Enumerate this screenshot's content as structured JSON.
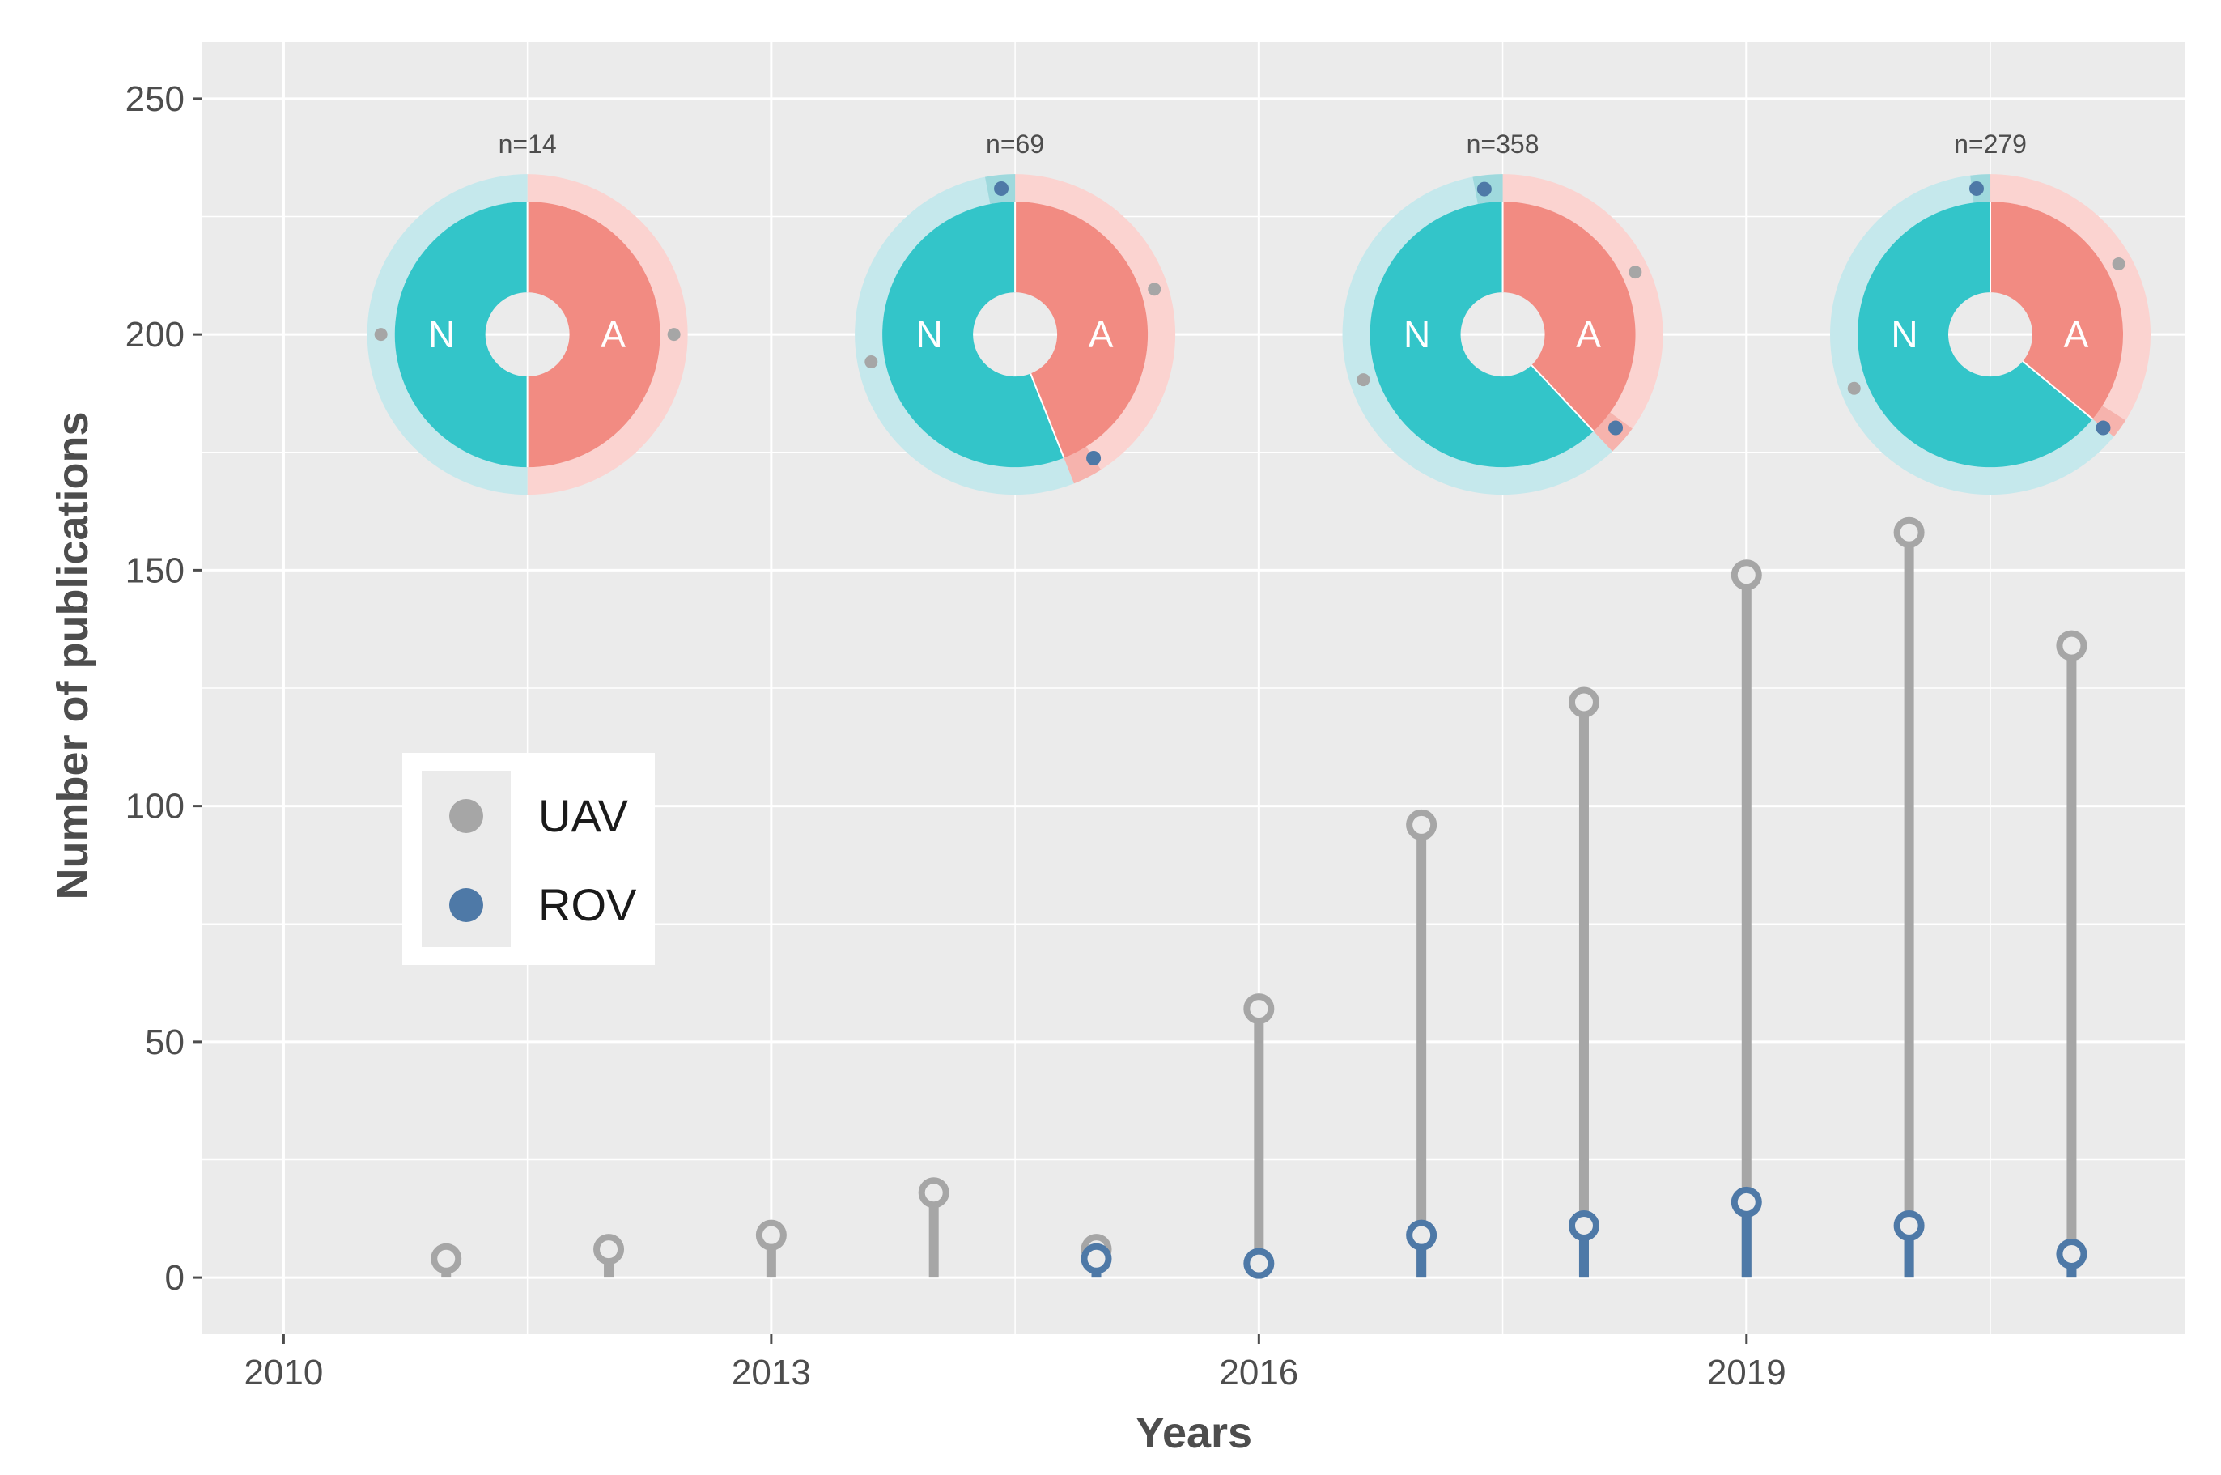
{
  "chart_data": {
    "type": "lollipop",
    "xlabel": "Years",
    "ylabel": "Number of publications",
    "xlim": [
      2009.5,
      2021.7
    ],
    "ylim": [
      -12,
      262
    ],
    "x_ticks": [
      2010,
      2013,
      2016,
      2019
    ],
    "y_ticks": [
      0,
      50,
      100,
      150,
      200,
      250
    ],
    "series": [
      {
        "name": "UAV",
        "color": "#a6a6a6",
        "x": [
          2011,
          2012,
          2013,
          2014,
          2015,
          2016,
          2017,
          2018,
          2019,
          2020,
          2021
        ],
        "values": [
          4,
          6,
          9,
          18,
          6,
          57,
          96,
          122,
          149,
          158,
          134
        ]
      },
      {
        "name": "ROV",
        "color": "#4e79a7",
        "x": [
          2015,
          2016,
          2017,
          2018,
          2019,
          2020,
          2021
        ],
        "values": [
          4,
          3,
          9,
          11,
          16,
          11,
          5
        ]
      }
    ],
    "legend": {
      "position": "left-middle",
      "items": [
        {
          "label": "UAV",
          "color": "#a6a6a6"
        },
        {
          "label": "ROV",
          "color": "#4e79a7"
        }
      ]
    },
    "donuts": [
      {
        "label": "n=14",
        "center_x": 2011.5,
        "center_y": 200,
        "inner_N": 0.5,
        "outer_A_start": 0.0,
        "outer_A_end": 0.5,
        "outer_rov": [],
        "outer_uav_dots": [
          0.25,
          0.75
        ]
      },
      {
        "label": "n=69",
        "center_x": 2014.5,
        "center_y": 200,
        "inner_N": 0.56,
        "rov_fraction_A": 0.03,
        "rov_fraction_N": 0.03,
        "uav_dots": [
          0.2,
          0.72
        ],
        "rov_dots": [
          0.41,
          0.985
        ]
      },
      {
        "label": "n=358",
        "center_x": 2017.5,
        "center_y": 200,
        "inner_N": 0.62,
        "rov_fraction_A": 0.03,
        "rov_fraction_N": 0.03,
        "uav_dots": [
          0.18,
          0.7
        ],
        "rov_dots": [
          0.36,
          0.98
        ]
      },
      {
        "label": "n=279",
        "center_x": 2020.5,
        "center_y": 200,
        "inner_N": 0.64,
        "rov_fraction_A": 0.02,
        "rov_fraction_N": 0.02,
        "uav_dots": [
          0.17,
          0.69
        ],
        "rov_dots": [
          0.36,
          0.985
        ]
      }
    ],
    "donut_letters": {
      "n": "N",
      "a": "A"
    },
    "donut_colors": {
      "n": "#33c5c9",
      "a": "#f28b82",
      "n_outer": "#c5e8ec",
      "a_outer": "#fbd3d0",
      "rov": "#4e79a7",
      "uav": "#a6a6a6"
    }
  }
}
